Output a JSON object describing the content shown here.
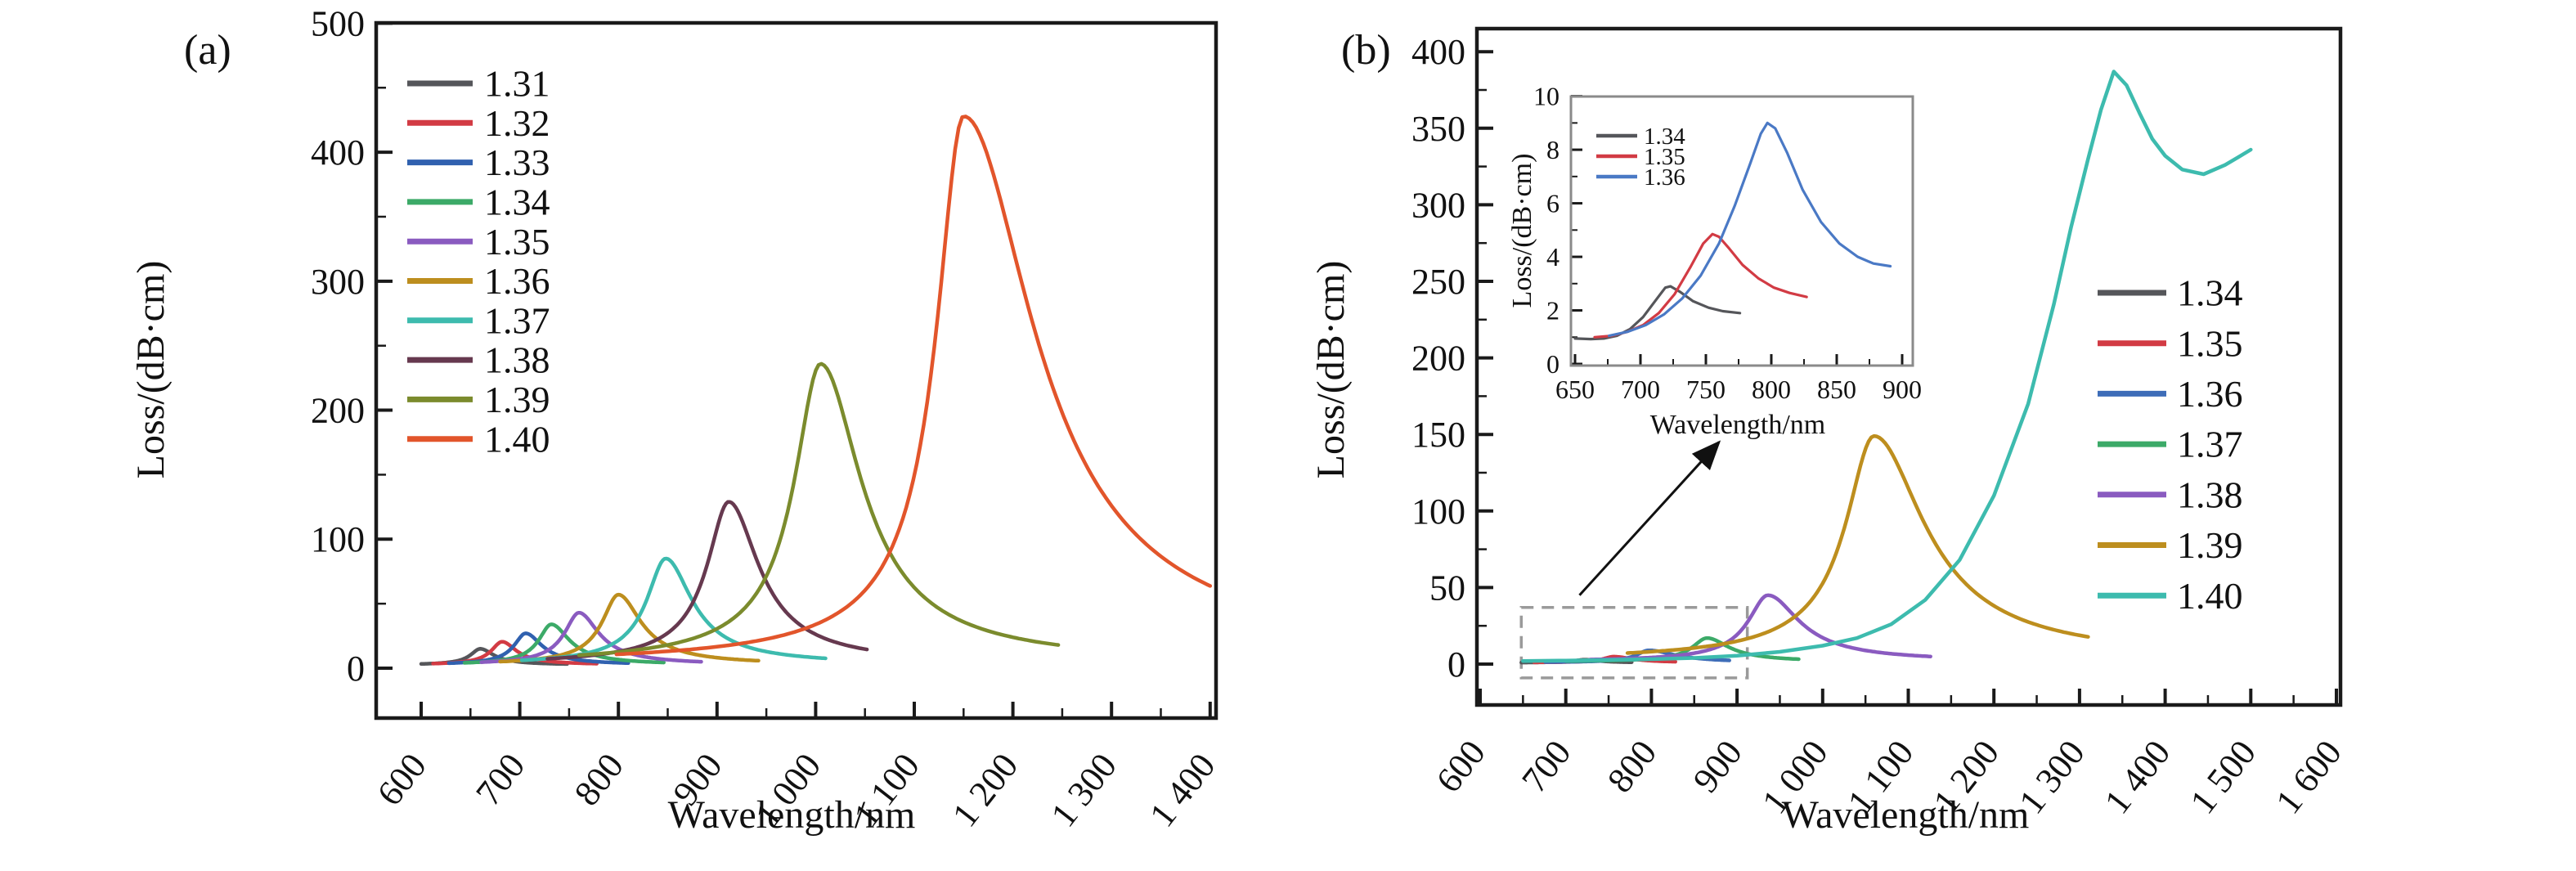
{
  "figure": {
    "description": "Two-panel line figure of SPR fiber sensor loss spectra versus wavelength for analyte refractive indices",
    "background_color": "#ffffff",
    "text_color": "#111111"
  },
  "chart_data": [
    {
      "id": "panel-a",
      "type": "line",
      "tag": "(a)",
      "xlabel": "Wavelength/nm",
      "ylabel": "Loss/(dB·cm)",
      "xlim": [
        600,
        1400
      ],
      "ylim": [
        0,
        500
      ],
      "x_major_step": 100,
      "x_minor_step": 50,
      "y_major_step": 100,
      "y_minor_step": 50,
      "xticks": [
        {
          "v": 600,
          "label": "600"
        },
        {
          "v": 700,
          "label": "700"
        },
        {
          "v": 800,
          "label": "800"
        },
        {
          "v": 900,
          "label": "900"
        },
        {
          "v": 1000,
          "label": "1 000"
        },
        {
          "v": 1100,
          "label": "1 100"
        },
        {
          "v": 1200,
          "label": "1 200"
        },
        {
          "v": 1300,
          "label": "1 300"
        },
        {
          "v": 1400,
          "label": "1 400"
        }
      ],
      "yticks": [
        {
          "v": 0,
          "label": "0"
        },
        {
          "v": 100,
          "label": "100"
        },
        {
          "v": 200,
          "label": "200"
        },
        {
          "v": 300,
          "label": "300"
        },
        {
          "v": 400,
          "label": "400"
        },
        {
          "v": 500,
          "label": "500"
        }
      ],
      "legend": {
        "position": "inside-top-left",
        "entries": [
          {
            "label": "1.31",
            "color": "#55565a"
          },
          {
            "label": "1.32",
            "color": "#d23b44"
          },
          {
            "label": "1.33",
            "color": "#3061af"
          },
          {
            "label": "1.34",
            "color": "#3caa68"
          },
          {
            "label": "1.35",
            "color": "#8a5bc0"
          },
          {
            "label": "1.36",
            "color": "#bd8e1e"
          },
          {
            "label": "1.37",
            "color": "#3dbbae"
          },
          {
            "label": "1.38",
            "color": "#66394f"
          },
          {
            "label": "1.39",
            "color": "#7b8b2d"
          },
          {
            "label": "1.40",
            "color": "#e2552b"
          }
        ]
      },
      "series": [
        {
          "name": "1.31",
          "color": "#55565a",
          "model": "peak",
          "range": [
            600,
            748
          ],
          "peak_nm": 660,
          "peak_loss": 15,
          "baseline": 2.5,
          "width_left": 11,
          "width_right": 15
        },
        {
          "name": "1.32",
          "color": "#d23b44",
          "model": "peak",
          "range": [
            612,
            778
          ],
          "peak_nm": 682,
          "peak_loss": 20.5,
          "baseline": 2.5,
          "width_left": 12,
          "width_right": 16
        },
        {
          "name": "1.33",
          "color": "#3061af",
          "model": "peak",
          "range": [
            628,
            810
          ],
          "peak_nm": 706,
          "peak_loss": 27,
          "baseline": 2.5,
          "width_left": 13,
          "width_right": 18
        },
        {
          "name": "1.34",
          "color": "#3caa68",
          "model": "peak",
          "range": [
            644,
            846
          ],
          "peak_nm": 732,
          "peak_loss": 34,
          "baseline": 2.5,
          "width_left": 14,
          "width_right": 20
        },
        {
          "name": "1.35",
          "color": "#8a5bc0",
          "model": "peak",
          "range": [
            661,
            884
          ],
          "peak_nm": 760,
          "peak_loss": 43,
          "baseline": 2.5,
          "width_left": 16,
          "width_right": 22
        },
        {
          "name": "1.36",
          "color": "#bd8e1e",
          "model": "peak",
          "range": [
            680,
            942
          ],
          "peak_nm": 800,
          "peak_loss": 57,
          "baseline": 2.5,
          "width_left": 18,
          "width_right": 25
        },
        {
          "name": "1.37",
          "color": "#3dbbae",
          "model": "peak",
          "range": [
            702,
            1010
          ],
          "peak_nm": 848,
          "peak_loss": 85,
          "baseline": 2.5,
          "width_left": 21,
          "width_right": 29
        },
        {
          "name": "1.38",
          "color": "#66394f",
          "model": "peak",
          "range": [
            728,
            1052
          ],
          "peak_nm": 912,
          "peak_loss": 129,
          "baseline": 2.5,
          "width_left": 24,
          "width_right": 33
        },
        {
          "name": "1.39",
          "color": "#7b8b2d",
          "model": "peak",
          "range": [
            760,
            1246
          ],
          "peak_nm": 1005,
          "peak_loss": 236,
          "baseline": 2.5,
          "width_left": 29,
          "width_right": 45
        },
        {
          "name": "1.40",
          "color": "#e2552b",
          "model": "peak",
          "range": [
            798,
            1400
          ],
          "peak_nm": 1150,
          "peak_loss": 428,
          "baseline": 2.5,
          "width_left": 30,
          "width_right": 78
        }
      ]
    },
    {
      "id": "panel-b",
      "type": "line",
      "tag": "(b)",
      "xlabel": "Wavelength/nm",
      "ylabel": "Loss/(dB·cm)",
      "xlim": [
        600,
        1600
      ],
      "ylim": [
        0,
        400
      ],
      "x_major_step": 100,
      "x_minor_step": 50,
      "y_major_step": 50,
      "y_minor_step": 25,
      "xticks": [
        {
          "v": 600,
          "label": "600"
        },
        {
          "v": 700,
          "label": "700"
        },
        {
          "v": 800,
          "label": "800"
        },
        {
          "v": 900,
          "label": "900"
        },
        {
          "v": 1000,
          "label": "1 000"
        },
        {
          "v": 1100,
          "label": "1 100"
        },
        {
          "v": 1200,
          "label": "1 200"
        },
        {
          "v": 1300,
          "label": "1 300"
        },
        {
          "v": 1400,
          "label": "1 400"
        },
        {
          "v": 1500,
          "label": "1 500"
        },
        {
          "v": 1600,
          "label": "1 600"
        }
      ],
      "yticks": [
        {
          "v": 0,
          "label": "0"
        },
        {
          "v": 50,
          "label": "50"
        },
        {
          "v": 100,
          "label": "100"
        },
        {
          "v": 150,
          "label": "150"
        },
        {
          "v": 200,
          "label": "200"
        },
        {
          "v": 250,
          "label": "250"
        },
        {
          "v": 300,
          "label": "300"
        },
        {
          "v": 350,
          "label": "350"
        },
        {
          "v": 400,
          "label": "400"
        }
      ],
      "legend": {
        "position": "inside-right",
        "entries": [
          {
            "label": "1.34",
            "color": "#55565a"
          },
          {
            "label": "1.35",
            "color": "#d23b44"
          },
          {
            "label": "1.36",
            "color": "#3e6db8"
          },
          {
            "label": "1.37",
            "color": "#3caa68"
          },
          {
            "label": "1.38",
            "color": "#8a5bc0"
          },
          {
            "label": "1.39",
            "color": "#bd8e1e"
          },
          {
            "label": "1.40",
            "color": "#3dbbae"
          }
        ]
      },
      "series": [
        {
          "name": "1.34",
          "color": "#55565a",
          "model": "peak",
          "range": [
            648,
            777
          ],
          "peak_nm": 722,
          "peak_loss": 2.9,
          "baseline": 0.9,
          "width_left": 13,
          "width_right": 18
        },
        {
          "name": "1.35",
          "color": "#d23b44",
          "model": "peak",
          "range": [
            663,
            828
          ],
          "peak_nm": 756,
          "peak_loss": 4.85,
          "baseline": 0.95,
          "width_left": 14,
          "width_right": 24
        },
        {
          "name": "1.36",
          "color": "#3e6db8",
          "model": "peak",
          "range": [
            676,
            891
          ],
          "peak_nm": 797,
          "peak_loss": 9.0,
          "baseline": 1.0,
          "width_left": 16,
          "width_right": 34
        },
        {
          "name": "1.37",
          "color": "#3caa68",
          "model": "peak",
          "range": [
            700,
            972
          ],
          "peak_nm": 865,
          "peak_loss": 17,
          "baseline": 1.5,
          "width_left": 19,
          "width_right": 28
        },
        {
          "name": "1.38",
          "color": "#8a5bc0",
          "model": "peak",
          "range": [
            728,
            1126
          ],
          "peak_nm": 936,
          "peak_loss": 45,
          "baseline": 1.5,
          "width_left": 25,
          "width_right": 40
        },
        {
          "name": "1.39",
          "color": "#bd8e1e",
          "model": "peak",
          "range": [
            772,
            1310
          ],
          "peak_nm": 1060,
          "peak_loss": 149,
          "baseline": 2.0,
          "width_left": 36,
          "width_right": 64
        },
        {
          "name": "1.40",
          "color": "#3dbbae",
          "model": "points",
          "points": [
            [
              650,
              2
            ],
            [
              700,
              2.3
            ],
            [
              750,
              2.7
            ],
            [
              800,
              3.2
            ],
            [
              850,
              4
            ],
            [
              900,
              5.5
            ],
            [
              950,
              8
            ],
            [
              1000,
              12
            ],
            [
              1040,
              17
            ],
            [
              1080,
              26
            ],
            [
              1120,
              42
            ],
            [
              1160,
              68
            ],
            [
              1200,
              110
            ],
            [
              1240,
              170
            ],
            [
              1270,
              235
            ],
            [
              1290,
              285
            ],
            [
              1310,
              330
            ],
            [
              1325,
              362
            ],
            [
              1340,
              387
            ],
            [
              1355,
              378
            ],
            [
              1370,
              360
            ],
            [
              1385,
              343
            ],
            [
              1400,
              332
            ],
            [
              1420,
              323
            ],
            [
              1445,
              320
            ],
            [
              1470,
              326
            ],
            [
              1485,
              331
            ],
            [
              1500,
              336
            ]
          ]
        }
      ],
      "annotations": {
        "dashed_box": {
          "x": [
            648,
            912
          ],
          "y": [
            -9,
            37
          ],
          "color": "#9a9a9a"
        },
        "arrow": {
          "from": [
            716,
            45
          ],
          "to": [
            879,
            145
          ],
          "color": "#111111"
        }
      }
    },
    {
      "id": "panel-b-inset",
      "type": "line",
      "tag": "",
      "xlabel": "Wavelength/nm",
      "ylabel": "Loss/(dB·cm)",
      "xlim": [
        650,
        900
      ],
      "ylim": [
        0,
        10
      ],
      "x_major_step": 50,
      "x_minor_step": 25,
      "y_major_step": 2,
      "y_minor_step": 1,
      "xticks": [
        {
          "v": 650,
          "label": "650"
        },
        {
          "v": 700,
          "label": "700"
        },
        {
          "v": 750,
          "label": "750"
        },
        {
          "v": 800,
          "label": "800"
        },
        {
          "v": 850,
          "label": "850"
        },
        {
          "v": 900,
          "label": "900"
        }
      ],
      "yticks": [
        {
          "v": 0,
          "label": "0"
        },
        {
          "v": 2,
          "label": "2"
        },
        {
          "v": 4,
          "label": "4"
        },
        {
          "v": 6,
          "label": "6"
        },
        {
          "v": 8,
          "label": "8"
        },
        {
          "v": 10,
          "label": "10"
        }
      ],
      "legend": {
        "position": "inside-top-left",
        "entries": [
          {
            "label": "1.34",
            "color": "#55565a"
          },
          {
            "label": "1.35",
            "color": "#d23b44"
          },
          {
            "label": "1.36",
            "color": "#4a79c5"
          }
        ]
      },
      "series": [
        {
          "name": "1.34",
          "color": "#55565a",
          "model": "points",
          "points": [
            [
              650,
              0.95
            ],
            [
              662,
              0.93
            ],
            [
              672,
              0.95
            ],
            [
              682,
              1.05
            ],
            [
              692,
              1.3
            ],
            [
              702,
              1.75
            ],
            [
              712,
              2.4
            ],
            [
              719,
              2.85
            ],
            [
              723,
              2.9
            ],
            [
              730,
              2.7
            ],
            [
              740,
              2.35
            ],
            [
              752,
              2.1
            ],
            [
              763,
              1.97
            ],
            [
              776,
              1.9
            ]
          ]
        },
        {
          "name": "1.35",
          "color": "#d23b44",
          "model": "points",
          "points": [
            [
              665,
              1.0
            ],
            [
              678,
              1.05
            ],
            [
              690,
              1.2
            ],
            [
              702,
              1.45
            ],
            [
              714,
              1.9
            ],
            [
              726,
              2.6
            ],
            [
              738,
              3.6
            ],
            [
              748,
              4.5
            ],
            [
              755,
              4.85
            ],
            [
              760,
              4.75
            ],
            [
              768,
              4.3
            ],
            [
              778,
              3.7
            ],
            [
              790,
              3.2
            ],
            [
              802,
              2.85
            ],
            [
              814,
              2.65
            ],
            [
              827,
              2.5
            ]
          ]
        },
        {
          "name": "1.36",
          "color": "#4a79c5",
          "model": "points",
          "points": [
            [
              676,
              1.05
            ],
            [
              690,
              1.2
            ],
            [
              704,
              1.45
            ],
            [
              718,
              1.85
            ],
            [
              732,
              2.45
            ],
            [
              746,
              3.3
            ],
            [
              760,
              4.5
            ],
            [
              772,
              5.9
            ],
            [
              784,
              7.5
            ],
            [
              792,
              8.6
            ],
            [
              797,
              9.0
            ],
            [
              803,
              8.8
            ],
            [
              812,
              7.9
            ],
            [
              824,
              6.5
            ],
            [
              838,
              5.3
            ],
            [
              852,
              4.5
            ],
            [
              866,
              4.0
            ],
            [
              878,
              3.75
            ],
            [
              891,
              3.65
            ]
          ]
        }
      ]
    }
  ]
}
